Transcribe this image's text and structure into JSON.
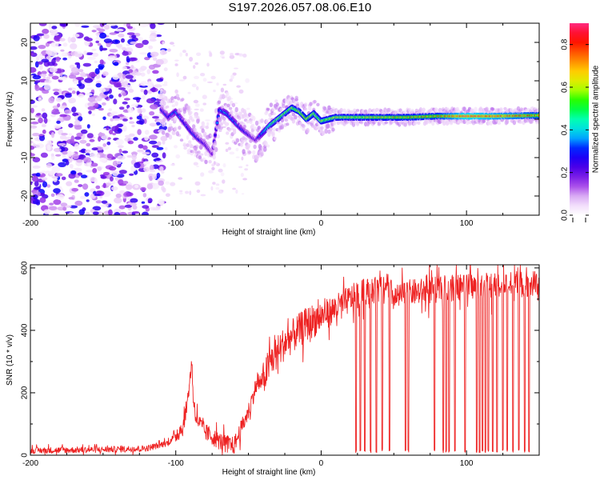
{
  "title": "S197.2026.057.08.06.E10",
  "chart_data": [
    {
      "type": "heatmap",
      "name": "spectrogram",
      "xlabel": "Height of straight line (km)",
      "ylabel": "Frequency (Hz)",
      "xlim": [
        -200,
        150
      ],
      "ylim": [
        -25,
        25
      ],
      "xticks": [
        -200,
        -100,
        0,
        100
      ],
      "yticks": [
        -20,
        -10,
        0,
        10,
        20
      ],
      "colorbar": {
        "label": "Normalized spectral amplitude",
        "range": [
          0.0,
          0.9
        ],
        "ticks": [
          0.0,
          0.2,
          0.4,
          0.6,
          0.8
        ],
        "colormap": [
          "#ffffff",
          "#e9c8f8",
          "#9a32e6",
          "#4b00e8",
          "#0000ff",
          "#00ccff",
          "#00ffb0",
          "#00ff00",
          "#ccff00",
          "#ffcc00",
          "#ff6600",
          "#ff0000",
          "#ff2a80"
        ]
      },
      "ridge": {
        "description": "dominant frequency trace",
        "x": [
          -110,
          -105,
          -100,
          -95,
          -90,
          -85,
          -80,
          -75,
          -70,
          -65,
          -60,
          -55,
          -50,
          -45,
          -40,
          -35,
          -30,
          -25,
          -20,
          -15,
          -10,
          -5,
          0,
          10,
          20,
          40,
          60,
          80,
          100,
          120,
          150
        ],
        "y": [
          2.5,
          0.5,
          2.0,
          -0.5,
          -3.0,
          -5.0,
          -6.5,
          -9.0,
          2.5,
          1.5,
          -0.5,
          -2.5,
          -4.0,
          -5.5,
          -3.5,
          -1.5,
          0.0,
          1.5,
          3.0,
          2.0,
          0.0,
          1.5,
          -0.5,
          0.5,
          0.5,
          0.5,
          0.5,
          0.8,
          0.8,
          0.8,
          1.0
        ],
        "amplitude": [
          0.25,
          0.3,
          0.35,
          0.3,
          0.3,
          0.28,
          0.25,
          0.2,
          0.35,
          0.38,
          0.35,
          0.3,
          0.25,
          0.2,
          0.4,
          0.5,
          0.55,
          0.55,
          0.6,
          0.62,
          0.65,
          0.6,
          0.6,
          0.62,
          0.62,
          0.65,
          0.68,
          0.7,
          0.85,
          0.8,
          0.72
        ]
      },
      "noise_region": {
        "x_range": [
          -200,
          -108
        ],
        "amplitude_range": [
          0.02,
          0.3
        ]
      }
    },
    {
      "type": "line",
      "name": "snr",
      "xlabel": "Height of straight line (km)",
      "ylabel": "SNR (10 * v/v)",
      "xlim": [
        -200,
        150
      ],
      "ylim": [
        0,
        610
      ],
      "xticks": [
        -200,
        -100,
        0,
        100
      ],
      "yticks": [
        0,
        200,
        400,
        600
      ],
      "color": "#ee2222",
      "envelope": {
        "x": [
          -200,
          -150,
          -120,
          -105,
          -95,
          -92,
          -89,
          -88,
          -86,
          -80,
          -70,
          -60,
          -50,
          -45,
          -40,
          -35,
          -25,
          -20,
          -10,
          0,
          10,
          20,
          30,
          40,
          45,
          50,
          60,
          100,
          150
        ],
        "y": [
          15,
          18,
          22,
          40,
          90,
          170,
          300,
          185,
          120,
          75,
          45,
          30,
          140,
          220,
          240,
          300,
          360,
          380,
          420,
          445,
          470,
          500,
          525,
          530,
          560,
          500,
          520,
          540,
          550
        ]
      },
      "spike_dropouts_x": [
        24,
        27,
        30,
        34,
        38,
        42,
        47,
        58,
        60,
        78,
        84,
        86,
        88,
        92,
        99,
        107,
        109,
        111,
        113,
        115,
        118,
        121,
        125,
        128,
        132,
        136,
        140,
        143
      ]
    }
  ]
}
